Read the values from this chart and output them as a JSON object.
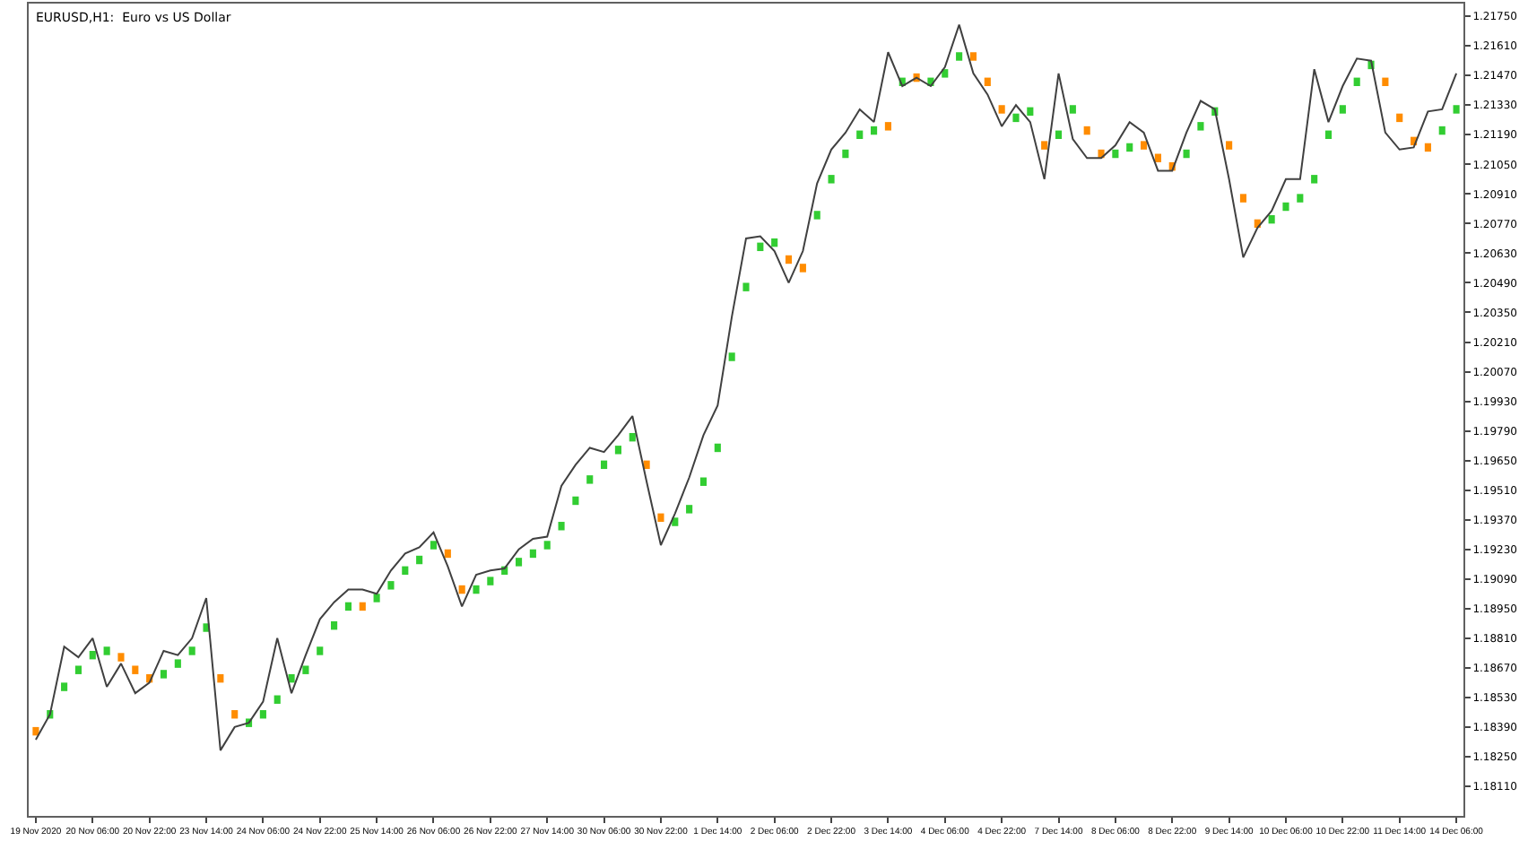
{
  "chart_data": {
    "type": "line",
    "title": "EURUSD,H1:  Euro vs US Dollar",
    "categories": [
      "19 Nov 2020",
      null,
      null,
      null,
      "20 Nov 06:00",
      null,
      null,
      null,
      "20 Nov 22:00",
      null,
      null,
      null,
      "23 Nov 14:00",
      null,
      null,
      null,
      "24 Nov 06:00",
      null,
      null,
      null,
      "24 Nov 22:00",
      null,
      null,
      null,
      "25 Nov 14:00",
      null,
      null,
      null,
      "26 Nov 06:00",
      null,
      null,
      null,
      "26 Nov 22:00",
      null,
      null,
      null,
      "27 Nov 14:00",
      null,
      null,
      null,
      "30 Nov 06:00",
      null,
      null,
      null,
      "30 Nov 22:00",
      null,
      null,
      null,
      "1 Dec 14:00",
      null,
      null,
      null,
      "2 Dec 06:00",
      null,
      null,
      null,
      "2 Dec 22:00",
      null,
      null,
      null,
      "3 Dec 14:00",
      null,
      null,
      null,
      "4 Dec 06:00",
      null,
      null,
      null,
      "4 Dec 22:00",
      null,
      null,
      null,
      "7 Dec 14:00",
      null,
      null,
      null,
      "8 Dec 06:00",
      null,
      null,
      null,
      "8 Dec 22:00",
      null,
      null,
      null,
      "9 Dec 14:00",
      null,
      null,
      null,
      "10 Dec 06:00",
      null,
      null,
      null,
      "10 Dec 22:00",
      null,
      null,
      null,
      "11 Dec 14:00",
      null,
      null,
      null,
      "14 Dec 06:00"
    ],
    "ylim": [
      1.1797,
      1.2181
    ],
    "yticks": [
      {
        "value": 1.1811,
        "label": "1.18110"
      },
      {
        "value": 1.1825,
        "label": "1.18250"
      },
      {
        "value": 1.1839,
        "label": "1.18390"
      },
      {
        "value": 1.1853,
        "label": "1.18530"
      },
      {
        "value": 1.1867,
        "label": "1.18670"
      },
      {
        "value": 1.1881,
        "label": "1.18810"
      },
      {
        "value": 1.1895,
        "label": "1.18950"
      },
      {
        "value": 1.1909,
        "label": "1.19090"
      },
      {
        "value": 1.1923,
        "label": "1.19230"
      },
      {
        "value": 1.1937,
        "label": "1.19370"
      },
      {
        "value": 1.1951,
        "label": "1.19510"
      },
      {
        "value": 1.1965,
        "label": "1.19650"
      },
      {
        "value": 1.1979,
        "label": "1.19790"
      },
      {
        "value": 1.1993,
        "label": "1.19930"
      },
      {
        "value": 1.2007,
        "label": "1.20070"
      },
      {
        "value": 1.2021,
        "label": "1.20210"
      },
      {
        "value": 1.2035,
        "label": "1.20350"
      },
      {
        "value": 1.2049,
        "label": "1.20490"
      },
      {
        "value": 1.2063,
        "label": "1.20630"
      },
      {
        "value": 1.2077,
        "label": "1.20770"
      },
      {
        "value": 1.2091,
        "label": "1.20910"
      },
      {
        "value": 1.2105,
        "label": "1.21050"
      },
      {
        "value": 1.2119,
        "label": "1.21190"
      },
      {
        "value": 1.2133,
        "label": "1.21330"
      },
      {
        "value": 1.2147,
        "label": "1.21470"
      },
      {
        "value": 1.2161,
        "label": "1.21610"
      },
      {
        "value": 1.2175,
        "label": "1.21750"
      }
    ],
    "series": [
      {
        "type": "bar",
        "base": [
          1.1835,
          1.1843,
          1.1856,
          1.1864,
          1.1871,
          1.1873,
          1.187,
          1.1864,
          1.186,
          1.1862,
          1.1867,
          1.1873,
          1.1884,
          1.186,
          1.1843,
          1.1839,
          1.1843,
          1.185,
          1.186,
          1.1864,
          1.1873,
          1.1885,
          1.1894,
          1.1894,
          1.1898,
          1.1904,
          1.1911,
          1.1916,
          1.1923,
          1.1919,
          1.1902,
          1.1902,
          1.1906,
          1.1911,
          1.1915,
          1.1919,
          1.1923,
          1.1932,
          1.1944,
          1.1954,
          1.1961,
          1.1968,
          1.1974,
          1.1961,
          1.1936,
          1.1934,
          1.194,
          1.1953,
          1.1969,
          1.2012,
          1.2045,
          1.2064,
          1.2066,
          1.2058,
          1.2054,
          1.2079,
          1.2096,
          1.2108,
          1.2117,
          1.2119,
          1.2121,
          1.2142,
          1.2144,
          1.2142,
          1.2146,
          1.2154,
          1.2154,
          1.2142,
          1.2129,
          1.2125,
          1.2128,
          1.2112,
          1.2117,
          1.2129,
          1.2119,
          1.2108,
          1.2108,
          1.2111,
          1.2112,
          1.2106,
          1.2102,
          1.2108,
          1.2121,
          1.2128,
          1.2112,
          1.2087,
          1.2075,
          1.2077,
          1.2083,
          1.2087,
          1.2096,
          1.2117,
          1.2129,
          1.2142,
          1.215,
          1.2142,
          1.2125,
          1.2114,
          1.2111,
          1.2119,
          1.2129
        ],
        "values": [
          0.0004,
          0.0004,
          0.0004,
          0.0004,
          0.0004,
          0.0004,
          0.0004,
          0.0004,
          0.0004,
          0.0004,
          0.0004,
          0.0004,
          0.0004,
          0.0004,
          0.0004,
          0.0004,
          0.0004,
          0.0004,
          0.0004,
          0.0004,
          0.0004,
          0.0004,
          0.0004,
          0.0004,
          0.0004,
          0.0004,
          0.0004,
          0.0004,
          0.0004,
          0.0004,
          0.0004,
          0.0004,
          0.0004,
          0.0004,
          0.0004,
          0.0004,
          0.0004,
          0.0004,
          0.0004,
          0.0004,
          0.0004,
          0.0004,
          0.0004,
          0.0004,
          0.0004,
          0.0004,
          0.0004,
          0.0004,
          0.0004,
          0.0004,
          0.0004,
          0.0004,
          0.0004,
          0.0004,
          0.0004,
          0.0004,
          0.0004,
          0.0004,
          0.0004,
          0.0004,
          0.0004,
          0.0004,
          0.0004,
          0.0004,
          0.0004,
          0.0004,
          0.0004,
          0.0004,
          0.0004,
          0.0004,
          0.0004,
          0.0004,
          0.0004,
          0.0004,
          0.0004,
          0.0004,
          0.0004,
          0.0004,
          0.0004,
          0.0004,
          0.0004,
          0.0004,
          0.0004,
          0.0004,
          0.0004,
          0.0004,
          0.0004,
          0.0004,
          0.0004,
          0.0004,
          0.0004,
          0.0004,
          0.0004,
          0.0004,
          0.0004,
          0.0004,
          0.0004,
          0.0004,
          0.0004,
          0.0004,
          0.0004
        ],
        "colors": [
          "#ff8c00",
          "#32cd32",
          "#32cd32",
          "#32cd32",
          "#32cd32",
          "#32cd32",
          "#ff8c00",
          "#ff8c00",
          "#ff8c00",
          "#32cd32",
          "#32cd32",
          "#32cd32",
          "#32cd32",
          "#ff8c00",
          "#ff8c00",
          "#32cd32",
          "#32cd32",
          "#32cd32",
          "#32cd32",
          "#32cd32",
          "#32cd32",
          "#32cd32",
          "#32cd32",
          "#ff8c00",
          "#32cd32",
          "#32cd32",
          "#32cd32",
          "#32cd32",
          "#32cd32",
          "#ff8c00",
          "#ff8c00",
          "#32cd32",
          "#32cd32",
          "#32cd32",
          "#32cd32",
          "#32cd32",
          "#32cd32",
          "#32cd32",
          "#32cd32",
          "#32cd32",
          "#32cd32",
          "#32cd32",
          "#32cd32",
          "#ff8c00",
          "#ff8c00",
          "#32cd32",
          "#32cd32",
          "#32cd32",
          "#32cd32",
          "#32cd32",
          "#32cd32",
          "#32cd32",
          "#32cd32",
          "#ff8c00",
          "#ff8c00",
          "#32cd32",
          "#32cd32",
          "#32cd32",
          "#32cd32",
          "#32cd32",
          "#ff8c00",
          "#32cd32",
          "#ff8c00",
          "#32cd32",
          "#32cd32",
          "#32cd32",
          "#ff8c00",
          "#ff8c00",
          "#ff8c00",
          "#32cd32",
          "#32cd32",
          "#ff8c00",
          "#32cd32",
          "#32cd32",
          "#ff8c00",
          "#ff8c00",
          "#32cd32",
          "#32cd32",
          "#ff8c00",
          "#ff8c00",
          "#ff8c00",
          "#32cd32",
          "#32cd32",
          "#32cd32",
          "#ff8c00",
          "#ff8c00",
          "#ff8c00",
          "#32cd32",
          "#32cd32",
          "#32cd32",
          "#32cd32",
          "#32cd32",
          "#32cd32",
          "#32cd32",
          "#32cd32",
          "#ff8c00",
          "#ff8c00",
          "#ff8c00",
          "#ff8c00",
          "#32cd32",
          "#32cd32"
        ]
      },
      {
        "color": "#404040",
        "values": [
          1.1833,
          1.1845,
          1.1877,
          1.1872,
          1.1881,
          1.1858,
          1.1869,
          1.1855,
          1.186,
          1.1875,
          1.1873,
          1.1881,
          1.19,
          1.1828,
          1.1839,
          1.1841,
          1.1851,
          1.1881,
          1.1855,
          1.1873,
          1.189,
          1.1898,
          1.1904,
          1.1904,
          1.1902,
          1.1913,
          1.1921,
          1.1924,
          1.1931,
          1.1915,
          1.1896,
          1.1911,
          1.1913,
          1.1914,
          1.1923,
          1.1928,
          1.1929,
          1.1953,
          1.1963,
          1.1971,
          1.1969,
          1.1977,
          1.1986,
          1.1955,
          1.1925,
          1.194,
          1.1957,
          1.1977,
          1.1991,
          1.2033,
          1.207,
          1.2071,
          1.2064,
          1.2049,
          1.2064,
          1.2096,
          1.2112,
          1.212,
          1.2131,
          1.2125,
          1.2158,
          1.2142,
          1.2146,
          1.2142,
          1.2151,
          1.2171,
          1.2148,
          1.2138,
          1.2123,
          1.2133,
          1.2125,
          1.2098,
          1.2148,
          1.2117,
          1.2108,
          1.2108,
          1.2114,
          1.2125,
          1.212,
          1.2102,
          1.2102,
          1.212,
          1.2135,
          1.2131,
          1.2098,
          1.2061,
          1.2075,
          1.2083,
          1.2098,
          1.2098,
          1.215,
          1.2125,
          1.2142,
          1.2155,
          1.2154,
          1.212,
          1.2112,
          1.2113,
          1.213,
          1.2131,
          1.2148
        ]
      }
    ]
  }
}
